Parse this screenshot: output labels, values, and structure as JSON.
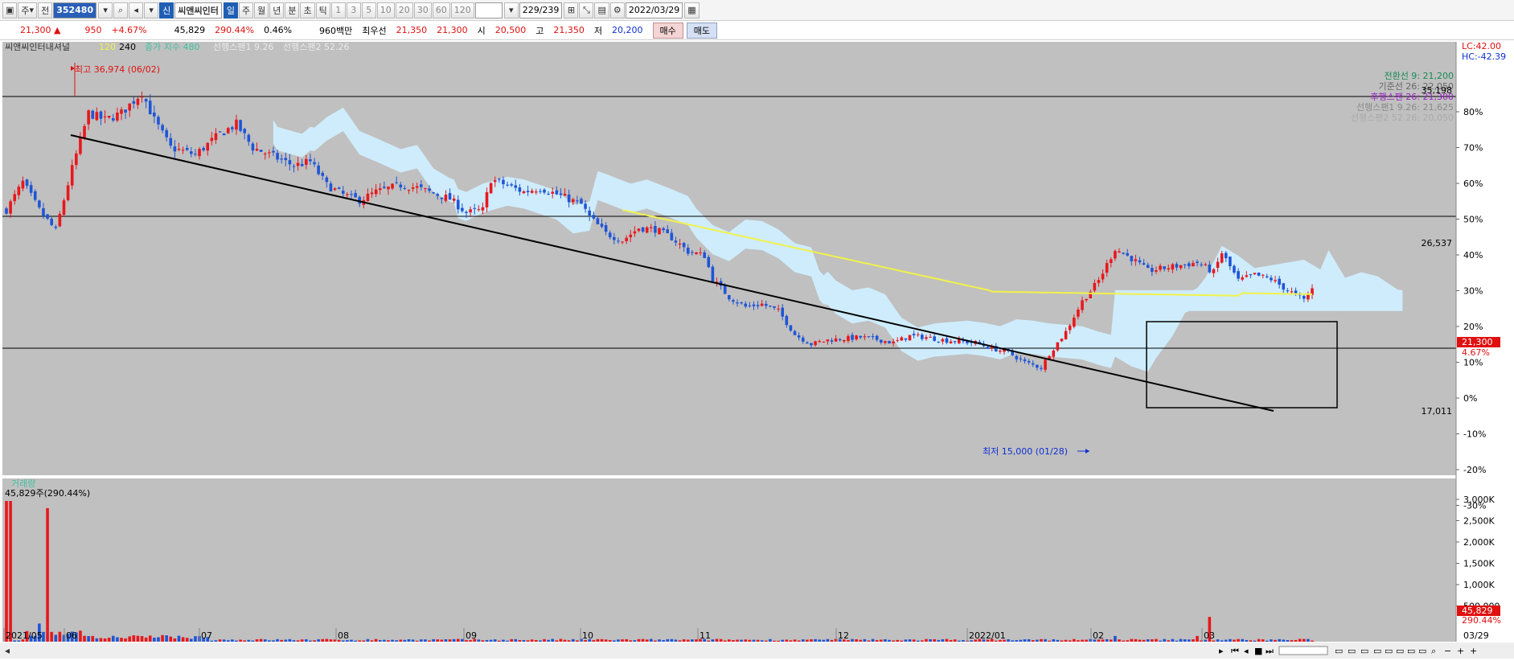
{
  "toolbar": {
    "type_options": [
      "주",
      "전"
    ],
    "code": "352480",
    "badge": "신",
    "name": "씨앤씨인터",
    "periods": [
      "일",
      "주",
      "월",
      "년",
      "분",
      "초",
      "틱"
    ],
    "numbers": [
      "1",
      "3",
      "5",
      "10",
      "20",
      "30",
      "60",
      "120"
    ],
    "count": "229/239",
    "date": "2022/03/29"
  },
  "quote": {
    "price": "21,300",
    "arrow": "▲",
    "change": "950",
    "change_pct": "+4.67%",
    "volume": "45,829",
    "vol_ratio": "290.44%",
    "turnover": "0.46%",
    "amount": "960백만",
    "best_label": "최우선",
    "best_ask": "21,350",
    "best_bid": "21,300",
    "open_label": "시",
    "open": "20,500",
    "high_label": "고",
    "high": "21,350",
    "low_label": "저",
    "low": "20,200",
    "buy_label": "매수",
    "sell_label": "매도"
  },
  "legend": {
    "name": "씨앤씨인터내셔널",
    "ma1": "120",
    "ma2": "240",
    "ichimoku": "종가 지수 480",
    "span1": "선행스팬1 9.26",
    "span2": "선행스팬2 52.26"
  },
  "right_panel": {
    "lc": "LC:42.00",
    "hc": "HC:-42.39",
    "ichi_lines": [
      {
        "text": "전환선 9: 21,200",
        "color": "#1a8a55"
      },
      {
        "text": "기준선 26: 22,050",
        "color": "#666666"
      },
      {
        "text": "후행스팬 26: 21,300",
        "color": "#9a20c0"
      },
      {
        "text": "선행스팬1 9.26: 21,625",
        "color": "#8a8a8a"
      },
      {
        "text": "선행스팬2 52.26: 20,050",
        "color": "#aaaaaa"
      }
    ],
    "current_price": "21,300",
    "current_pct": "4.67%",
    "volume_label": "45,829",
    "volume_pct": "290.44%"
  },
  "annotations": {
    "high": "최고 36,974 (06/02)",
    "low": "최저 15,000 (01/28)",
    "line_high": "35,198",
    "line_mid": "26,537",
    "line_low": "17,011"
  },
  "volume_panel": {
    "title": "거래량",
    "info": "45,829주(290.44%)"
  },
  "chart_data": {
    "type": "candlestick",
    "price_axis_pct": [
      "80%",
      "70%",
      "60%",
      "50%",
      "40%",
      "30%",
      "20%",
      "10%",
      "0%",
      "-10%",
      "-20%",
      "-30%"
    ],
    "volume_axis": [
      "3,000K",
      "2,500K",
      "2,000K",
      "1,500K",
      "1,000K",
      "500,000"
    ],
    "x_labels": [
      "2021/05",
      "06",
      "07",
      "08",
      "09",
      "10",
      "11",
      "12",
      "2022/01",
      "02",
      "03"
    ],
    "last_date": "03/29",
    "horizontal_levels": [
      35198,
      26537,
      17011
    ],
    "price_high": 36974,
    "price_low": 15000,
    "colors": {
      "up": "#e8181c",
      "down": "#1f55d6",
      "cloud": "#cfeeff",
      "cloud_bear": "#aaaaaa",
      "ma": "#f2f24a",
      "bg": "#c0c0c0"
    }
  }
}
